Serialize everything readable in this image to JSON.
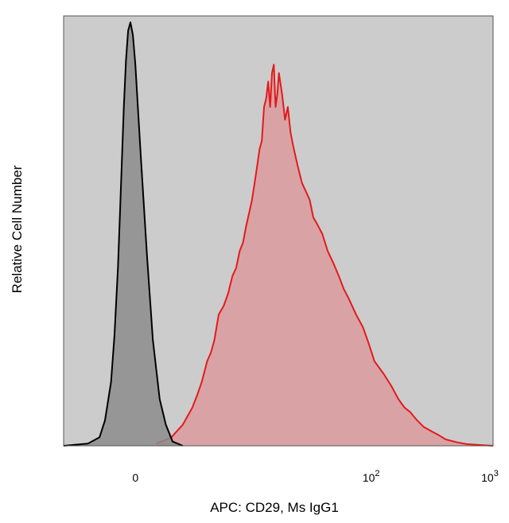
{
  "chart_data": {
    "type": "area",
    "title": "",
    "xlabel": "APC: CD29, Ms IgG1",
    "ylabel": "Relative Cell Number",
    "x_scale": "log",
    "xlim": [
      -3,
      1000
    ],
    "ylim": [
      0,
      1
    ],
    "grid": false,
    "legend": "none",
    "background_color": "#cccccc",
    "x_ticks": [
      {
        "value": 0,
        "base": "0",
        "exp": ""
      },
      {
        "value": 100,
        "base": "10",
        "exp": "2"
      },
      {
        "value": 1000,
        "base": "10",
        "exp": "3"
      }
    ],
    "series": [
      {
        "id": "isotype",
        "fill": "#8c8c8c",
        "stroke": "#000000",
        "x": [
          -3,
          -1.5,
          -1,
          -0.8,
          -0.6,
          -0.5,
          -0.4,
          -0.35,
          -0.3,
          -0.25,
          -0.2,
          -0.15,
          -0.1,
          -0.05,
          0,
          0.1,
          0.25,
          0.4,
          0.6,
          0.8,
          1.05,
          1.5
        ],
        "y": [
          0,
          0.005,
          0.02,
          0.06,
          0.15,
          0.26,
          0.42,
          0.54,
          0.67,
          0.8,
          0.91,
          0.98,
          1.0,
          0.97,
          0.9,
          0.7,
          0.45,
          0.25,
          0.11,
          0.05,
          0.01,
          0
        ]
      },
      {
        "id": "cd29",
        "fill": "#d9a3a5",
        "stroke": "#e31a1c",
        "x": [
          0.5,
          1,
          1.5,
          2,
          2.3,
          2.6,
          3,
          3.3,
          3.6,
          4,
          4.5,
          5,
          5.5,
          6,
          6.5,
          7,
          7.5,
          8,
          8.5,
          9,
          9.5,
          10,
          10.5,
          11,
          11.5,
          12,
          12.5,
          13,
          13.5,
          14,
          14.5,
          15,
          16,
          17,
          18,
          19,
          20,
          22,
          24,
          26,
          28,
          30,
          33,
          36,
          40,
          45,
          50,
          55,
          60,
          70,
          80,
          90,
          100,
          120,
          140,
          160,
          180,
          200,
          230,
          260,
          300,
          350,
          400,
          500,
          600,
          750,
          1000
        ],
        "y": [
          0.005,
          0.02,
          0.05,
          0.09,
          0.12,
          0.15,
          0.2,
          0.22,
          0.25,
          0.31,
          0.33,
          0.36,
          0.4,
          0.42,
          0.46,
          0.48,
          0.52,
          0.55,
          0.58,
          0.62,
          0.66,
          0.7,
          0.72,
          0.8,
          0.82,
          0.86,
          0.8,
          0.88,
          0.9,
          0.8,
          0.83,
          0.88,
          0.83,
          0.77,
          0.8,
          0.74,
          0.71,
          0.66,
          0.62,
          0.6,
          0.58,
          0.54,
          0.52,
          0.5,
          0.46,
          0.43,
          0.4,
          0.37,
          0.35,
          0.31,
          0.28,
          0.24,
          0.2,
          0.17,
          0.14,
          0.11,
          0.09,
          0.08,
          0.06,
          0.045,
          0.035,
          0.025,
          0.015,
          0.008,
          0.004,
          0.002,
          0
        ]
      }
    ]
  }
}
